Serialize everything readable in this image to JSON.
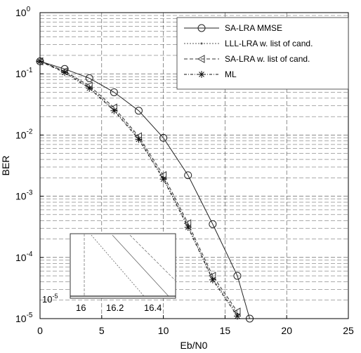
{
  "chart_data": {
    "type": "line",
    "xlabel": "Eb/N0",
    "ylabel": "BER",
    "xlim": [
      0,
      25
    ],
    "ylim": [
      1e-05,
      1
    ],
    "yscale": "log",
    "grid": true,
    "legend_position": "top-right",
    "xticks": [
      "0",
      "5",
      "10",
      "15",
      "20",
      "25"
    ],
    "yticks": [
      {
        "base": "10",
        "exp": "-5"
      },
      {
        "base": "10",
        "exp": "-4"
      },
      {
        "base": "10",
        "exp": "-3"
      },
      {
        "base": "10",
        "exp": "-2"
      },
      {
        "base": "10",
        "exp": "-1"
      },
      {
        "base": "10",
        "exp": "0"
      }
    ],
    "series": [
      {
        "name": "SA-LRA MMSE",
        "marker": "circle",
        "color": "#222222",
        "x": [
          0,
          2,
          4,
          6,
          8,
          10,
          12,
          14,
          16,
          17
        ],
        "y": [
          0.16,
          0.12,
          0.085,
          0.05,
          0.025,
          0.009,
          0.0022,
          0.00035,
          5e-05,
          1e-05
        ]
      },
      {
        "name": "LLL-LRA w. list of cand.",
        "marker": "dot",
        "color": "#555555",
        "x": [
          0,
          2,
          4,
          6,
          8,
          10,
          12,
          14,
          16
        ],
        "y": [
          0.16,
          0.11,
          0.06,
          0.026,
          0.009,
          0.002,
          0.00033,
          4.5e-05,
          1.2e-05
        ]
      },
      {
        "name": "SA-LRA w. list of cand.",
        "marker": "triangle-left",
        "color": "#333333",
        "x": [
          0,
          2,
          4,
          6,
          8,
          10,
          12,
          14,
          16
        ],
        "y": [
          0.16,
          0.11,
          0.064,
          0.028,
          0.0095,
          0.0022,
          0.00036,
          5e-05,
          1.3e-05
        ]
      },
      {
        "name": "ML",
        "marker": "star",
        "color": "#111111",
        "x": [
          0,
          2,
          4,
          6,
          8,
          10,
          12,
          14,
          16
        ],
        "y": [
          0.16,
          0.105,
          0.058,
          0.025,
          0.0085,
          0.0019,
          0.00031,
          4.3e-05,
          1.1e-05
        ]
      }
    ],
    "inset": {
      "xticks": [
        "16",
        "16.2",
        "16.4"
      ],
      "ylabel_base": "10",
      "ylabel_exp": "-5"
    }
  }
}
